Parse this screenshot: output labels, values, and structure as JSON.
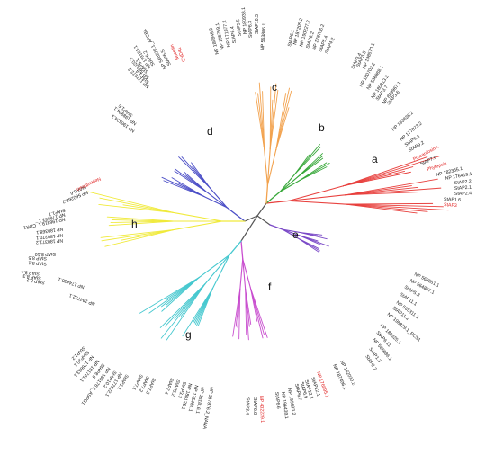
{
  "colors": {
    "a": "#e8413e",
    "b": "#38a83a",
    "c": "#f2a24e",
    "d": "#4c4fc7",
    "e": "#7a49c7",
    "f": "#c94fcf",
    "g": "#46c8cf",
    "h": "#f0ea3a",
    "black": "#1a1a1a",
    "highlight": "#e02020",
    "stem": "#555555"
  },
  "clades": [
    {
      "id": "a",
      "label": "a"
    },
    {
      "id": "b",
      "label": "b"
    },
    {
      "id": "c",
      "label": "c"
    },
    {
      "id": "d",
      "label": "d"
    },
    {
      "id": "e",
      "label": "e"
    },
    {
      "id": "f",
      "label": "f"
    },
    {
      "id": "g",
      "label": "g"
    },
    {
      "id": "h",
      "label": "h"
    }
  ],
  "leaves": [
    {
      "text": "NP 198570.1",
      "h": false
    },
    {
      "text": "StAP3.5",
      "h": false
    },
    {
      "text": "StAP3.4",
      "h": false
    },
    {
      "text": "NP 180702.2",
      "h": false
    },
    {
      "text": "NP 566988.1",
      "h": false
    },
    {
      "text": "NP 180813.2",
      "h": false
    },
    {
      "text": "StAP3.7",
      "h": false
    },
    {
      "text": "NP 849967.1",
      "h": false
    },
    {
      "text": "StAP3.6",
      "h": false
    },
    {
      "text": "NP 193836.2",
      "h": false
    },
    {
      "text": "NP 177073.2",
      "h": false
    },
    {
      "text": "StAP9.3",
      "h": false
    },
    {
      "text": "StAP9.2",
      "h": false
    },
    {
      "text": "ProcardosinA",
      "h": true
    },
    {
      "text": "StAP7.5",
      "h": false
    },
    {
      "text": "Phytepsin",
      "h": true
    },
    {
      "text": "NP 182355.1",
      "h": false
    },
    {
      "text": "NP 176419.1",
      "h": false
    },
    {
      "text": "StAP2.2",
      "h": false
    },
    {
      "text": "StAP2.1",
      "h": false
    },
    {
      "text": "StAP2.4",
      "h": false
    },
    {
      "text": "StAP1.6",
      "h": false
    },
    {
      "text": "StAP3",
      "h": true
    },
    {
      "text": "NP 568551.1",
      "h": false
    },
    {
      "text": "NP 564867.1",
      "h": false
    },
    {
      "text": "StAP5.3",
      "h": false
    },
    {
      "text": "StAP11.1",
      "h": false
    },
    {
      "text": "NP 565311.1",
      "h": false
    },
    {
      "text": "StAP11.2",
      "h": false
    },
    {
      "text": "NP 198829.1_PCS1",
      "h": false
    },
    {
      "text": "NP 180325.1",
      "h": false
    },
    {
      "text": "StAP6.11",
      "h": false
    },
    {
      "text": "NP 566686.1",
      "h": false
    },
    {
      "text": "StAP1.3",
      "h": false
    },
    {
      "text": "StAP8.7",
      "h": false
    },
    {
      "text": "NP 182030.2",
      "h": false
    },
    {
      "text": "NP 187406.1",
      "h": false
    },
    {
      "text": "NP 176895.1",
      "h": true
    },
    {
      "text": "StAP12.1",
      "h": false
    },
    {
      "text": "StAP12.2",
      "h": false
    },
    {
      "text": "StAP6.9",
      "h": false
    },
    {
      "text": "StAP6.7",
      "h": false
    },
    {
      "text": "NP 199633.2",
      "h": false
    },
    {
      "text": "NP 196439.1",
      "h": false
    },
    {
      "text": "StAP6.6",
      "h": false
    },
    {
      "text": "NP 402229.1",
      "h": true
    },
    {
      "text": "StAP6.8",
      "h": false
    },
    {
      "text": "StAP3.4",
      "h": false
    },
    {
      "text": "NP 187876.2_NANA",
      "h": false
    },
    {
      "text": "NP 181816.1",
      "h": false
    },
    {
      "text": "NP 175481.1",
      "h": false
    },
    {
      "text": "NP 186126.1",
      "h": false
    },
    {
      "text": "StAP3.3",
      "h": false
    },
    {
      "text": "StAP5.2",
      "h": false
    },
    {
      "text": "StAP7.4",
      "h": false
    },
    {
      "text": "StAP7.3",
      "h": false
    },
    {
      "text": "StAP7.2",
      "h": false
    },
    {
      "text": "StAP7.1",
      "h": false
    },
    {
      "text": "StAP1.1",
      "h": false
    },
    {
      "text": "NP 177622.1",
      "h": false
    },
    {
      "text": "StAP10.2",
      "h": false
    },
    {
      "text": "NP 186178.1_ASPG1",
      "h": false
    },
    {
      "text": "StAP8.6",
      "h": false
    },
    {
      "text": "NP 191741.1",
      "h": false
    },
    {
      "text": "NP 176663.1",
      "h": false
    },
    {
      "text": "StAP10.1",
      "h": false
    },
    {
      "text": "StAP1.2",
      "h": false
    },
    {
      "text": "NP 194732.1",
      "h": false
    },
    {
      "text": "NP 174430.1",
      "h": false
    },
    {
      "text": "StAP 8.2",
      "h": false
    },
    {
      "text": "StAP 8.3",
      "h": false
    },
    {
      "text": "StAP 8.4",
      "h": false
    },
    {
      "text": "StAP 8.1",
      "h": false
    },
    {
      "text": "StAP 8.5",
      "h": false
    },
    {
      "text": "StAP 8.10",
      "h": false
    },
    {
      "text": "NP 180371.2",
      "h": false
    },
    {
      "text": "NP 180370.1",
      "h": false
    },
    {
      "text": "NP 180368.1",
      "h": false
    },
    {
      "text": "NP 196319.1_CDR1",
      "h": false
    },
    {
      "text": "NP 176663.1",
      "h": false
    },
    {
      "text": "StAP1.1",
      "h": false
    },
    {
      "text": "NP 560268.2",
      "h": false
    },
    {
      "text": "StAP5.6",
      "h": false
    },
    {
      "text": "Nepenthesin",
      "h": true
    },
    {
      "text": "NP 196524.3",
      "h": false
    },
    {
      "text": "NP 198974.1",
      "h": false
    },
    {
      "text": "StAP1.5",
      "h": false
    },
    {
      "text": "NP 177872.2",
      "h": false
    },
    {
      "text": "StAP1.4",
      "h": false
    },
    {
      "text": "NP 567020.1",
      "h": false
    },
    {
      "text": "StAP5.1",
      "h": false
    },
    {
      "text": "NP 179181.1",
      "h": false
    },
    {
      "text": "StAP6.2",
      "h": false
    },
    {
      "text": "NP 568226.1_APCB1",
      "h": false
    },
    {
      "text": "StAP6.5",
      "h": false
    },
    {
      "text": "Nucellin",
      "h": true
    },
    {
      "text": "CND41",
      "h": true
    },
    {
      "text": "NP 186845.2",
      "h": false
    },
    {
      "text": "NP 195759.1",
      "h": false
    },
    {
      "text": "NP 171977.2",
      "h": false
    },
    {
      "text": "StAP6.4",
      "h": false
    },
    {
      "text": "StAP5.5",
      "h": false
    },
    {
      "text": "NP 180938.1",
      "h": false
    },
    {
      "text": "StAP6.3",
      "h": false
    },
    {
      "text": "StAP10.3",
      "h": false
    },
    {
      "text": "NP 563806.1",
      "h": false
    },
    {
      "text": "StAP6.1",
      "h": false
    },
    {
      "text": "NP 187205.2",
      "h": false
    },
    {
      "text": "NP 190227.2",
      "h": false
    },
    {
      "text": "StAP6.2",
      "h": false
    },
    {
      "text": "NP 178706.2",
      "h": false
    },
    {
      "text": "StAP5.4",
      "h": false
    },
    {
      "text": "StAP4.2",
      "h": false
    }
  ]
}
